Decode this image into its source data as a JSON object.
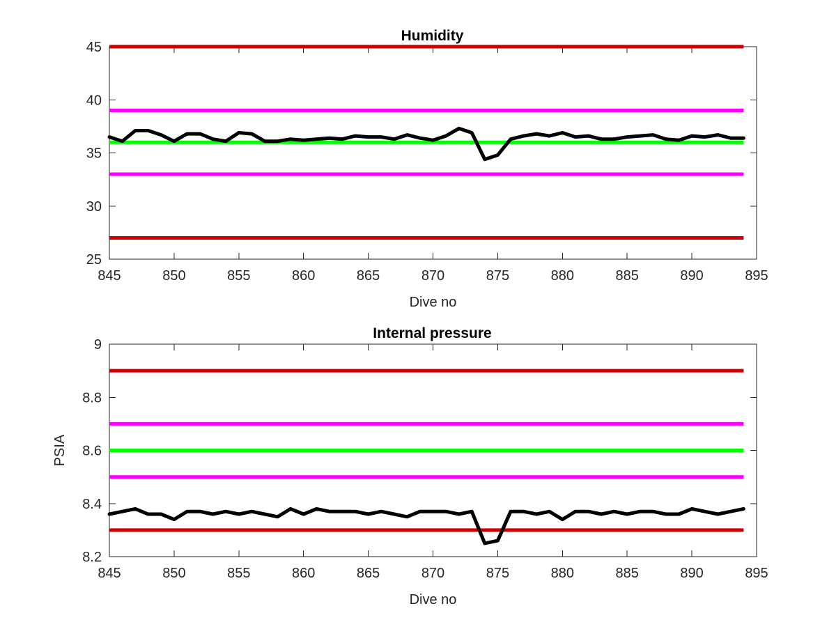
{
  "chart_data": [
    {
      "type": "line",
      "title": "Humidity",
      "xlabel": "Dive no",
      "ylabel": "",
      "xlim": [
        845,
        895
      ],
      "ylim": [
        25,
        45
      ],
      "xticks": [
        "845",
        "850",
        "855",
        "860",
        "865",
        "870",
        "875",
        "880",
        "885",
        "890",
        "895"
      ],
      "yticks": [
        "25",
        "30",
        "35",
        "40",
        "45"
      ],
      "grid": false,
      "reference_lines": [
        {
          "value": 45,
          "color": "#cc0000"
        },
        {
          "value": 39,
          "color": "#ff00ff"
        },
        {
          "value": 36,
          "color": "#00ff00"
        },
        {
          "value": 33,
          "color": "#ff00ff"
        },
        {
          "value": 27,
          "color": "#cc0000"
        }
      ],
      "series": [
        {
          "color": "#000000",
          "x": [
            845,
            846,
            847,
            848,
            849,
            850,
            851,
            852,
            853,
            854,
            855,
            856,
            857,
            858,
            859,
            860,
            861,
            862,
            863,
            864,
            865,
            866,
            867,
            868,
            869,
            870,
            871,
            872,
            873,
            874,
            875,
            876,
            877,
            878,
            879,
            880,
            881,
            882,
            883,
            884,
            885,
            886,
            887,
            888,
            889,
            890,
            891,
            892,
            893,
            894
          ],
          "y": [
            36.5,
            36.1,
            37.1,
            37.1,
            36.7,
            36.1,
            36.8,
            36.8,
            36.3,
            36.1,
            36.9,
            36.8,
            36.1,
            36.1,
            36.3,
            36.2,
            36.3,
            36.4,
            36.3,
            36.6,
            36.5,
            36.5,
            36.3,
            36.7,
            36.4,
            36.2,
            36.6,
            37.3,
            36.9,
            34.4,
            34.8,
            36.3,
            36.6,
            36.8,
            36.6,
            36.9,
            36.5,
            36.6,
            36.3,
            36.3,
            36.5,
            36.6,
            36.7,
            36.3,
            36.2,
            36.6,
            36.5,
            36.7,
            36.4,
            36.4
          ]
        }
      ]
    },
    {
      "type": "line",
      "title": "Internal pressure",
      "xlabel": "Dive no",
      "ylabel": "PSIA",
      "xlim": [
        845,
        895
      ],
      "ylim": [
        8.2,
        9.0
      ],
      "xticks": [
        "845",
        "850",
        "855",
        "860",
        "865",
        "870",
        "875",
        "880",
        "885",
        "890",
        "895"
      ],
      "yticks": [
        "8.2",
        "8.4",
        "8.6",
        "8.8",
        "9"
      ],
      "grid": false,
      "reference_lines": [
        {
          "value": 8.9,
          "color": "#cc0000"
        },
        {
          "value": 8.7,
          "color": "#ff00ff"
        },
        {
          "value": 8.6,
          "color": "#00ff00"
        },
        {
          "value": 8.5,
          "color": "#ff00ff"
        },
        {
          "value": 8.3,
          "color": "#cc0000"
        }
      ],
      "series": [
        {
          "color": "#000000",
          "x": [
            845,
            846,
            847,
            848,
            849,
            850,
            851,
            852,
            853,
            854,
            855,
            856,
            857,
            858,
            859,
            860,
            861,
            862,
            863,
            864,
            865,
            866,
            867,
            868,
            869,
            870,
            871,
            872,
            873,
            874,
            875,
            876,
            877,
            878,
            879,
            880,
            881,
            882,
            883,
            884,
            885,
            886,
            887,
            888,
            889,
            890,
            891,
            892,
            893,
            894
          ],
          "y": [
            8.36,
            8.37,
            8.38,
            8.36,
            8.36,
            8.34,
            8.37,
            8.37,
            8.36,
            8.37,
            8.36,
            8.37,
            8.36,
            8.35,
            8.38,
            8.36,
            8.38,
            8.37,
            8.37,
            8.37,
            8.36,
            8.37,
            8.36,
            8.35,
            8.37,
            8.37,
            8.37,
            8.36,
            8.37,
            8.25,
            8.26,
            8.37,
            8.37,
            8.36,
            8.37,
            8.34,
            8.37,
            8.37,
            8.36,
            8.37,
            8.36,
            8.37,
            8.37,
            8.36,
            8.36,
            8.38,
            8.37,
            8.36,
            8.37,
            8.38
          ]
        }
      ]
    }
  ]
}
